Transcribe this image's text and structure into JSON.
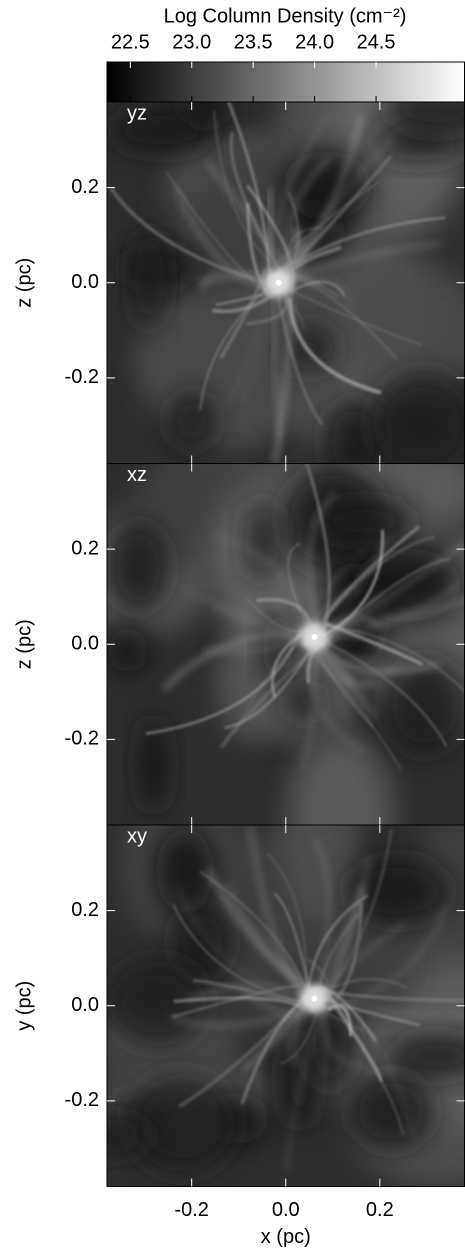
{
  "chart_data": [
    {
      "type": "colorbar",
      "title": "Log Column Density (cm⁻²)",
      "clim": [
        22.31,
        25.22
      ],
      "ticks": [
        22.5,
        {
          "value": 23.0,
          "label": "23.0"
        },
        23.5,
        {
          "value": 24.0,
          "label": "24.0"
        },
        24.5
      ],
      "colors": [
        "#000000",
        "#ffffff"
      ]
    },
    {
      "type": "image",
      "label": "yz",
      "ylabel": "z (pc)",
      "xlim": [
        -0.38,
        0.38
      ],
      "ylim": [
        -0.38,
        0.38
      ],
      "xticks": [
        -0.2,
        {
          "value": 0,
          "label": "0.0"
        },
        0.2
      ],
      "yticks": [
        -0.2,
        {
          "value": 0,
          "label": "0.0"
        },
        0.2
      ]
    },
    {
      "type": "image",
      "label": "xz",
      "ylabel": "z (pc)",
      "xlim": [
        -0.38,
        0.38
      ],
      "ylim": [
        -0.38,
        0.38
      ],
      "xticks": [
        -0.2,
        {
          "value": 0,
          "label": "0.0"
        },
        0.2
      ],
      "yticks": [
        -0.2,
        {
          "value": 0,
          "label": "0.0"
        },
        0.2
      ]
    },
    {
      "type": "image",
      "label": "xy",
      "ylabel": "y (pc)",
      "xlabel": "x (pc)",
      "xlim": [
        -0.38,
        0.38
      ],
      "ylim": [
        -0.38,
        0.38
      ],
      "xticks": [
        -0.2,
        {
          "value": 0,
          "label": "0.0"
        },
        0.2
      ],
      "yticks": [
        -0.2,
        {
          "value": 0,
          "label": "0.0"
        },
        0.2
      ]
    }
  ]
}
